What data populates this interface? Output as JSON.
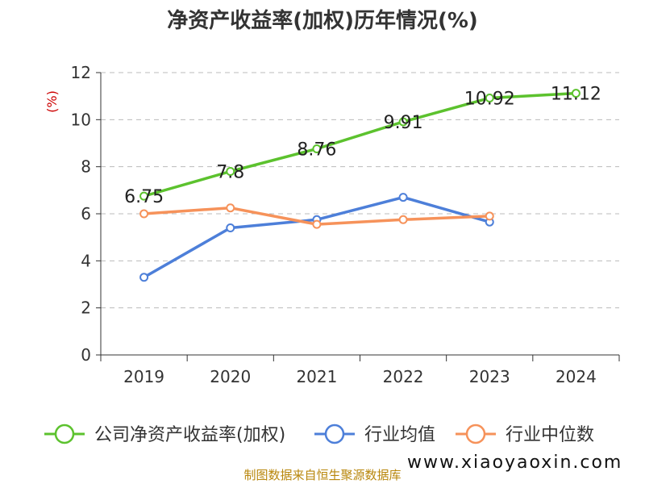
{
  "chart_data": {
    "type": "line",
    "title": "净资产收益率(加权)历年情况(%)",
    "ylabel": "(%)",
    "categories": [
      "2019",
      "2020",
      "2021",
      "2022",
      "2023",
      "2024"
    ],
    "ylim": [
      0,
      12
    ],
    "yticks": [
      "0",
      "2",
      "4",
      "6",
      "8",
      "10",
      "12"
    ],
    "grid": true,
    "legend_position": "bottom",
    "series": [
      {
        "name": "公司净资产收益率(加权)",
        "color": "#5cc22e",
        "values": [
          6.75,
          7.8,
          8.76,
          9.91,
          10.92,
          11.12
        ],
        "labels": [
          "6.75",
          "7.8",
          "8.76",
          "9.91",
          "10.92",
          "11.12"
        ]
      },
      {
        "name": "行业均值",
        "color": "#4d7fd9",
        "values": [
          3.3,
          5.4,
          5.75,
          6.7,
          5.65,
          null
        ]
      },
      {
        "name": "行业中位数",
        "color": "#f6925a",
        "values": [
          6.0,
          6.25,
          5.55,
          5.75,
          5.9,
          null
        ]
      }
    ]
  },
  "footer": {
    "source": "制图数据来自恒生聚源数据库",
    "watermark": "www.xiaoyaoxin.com"
  }
}
